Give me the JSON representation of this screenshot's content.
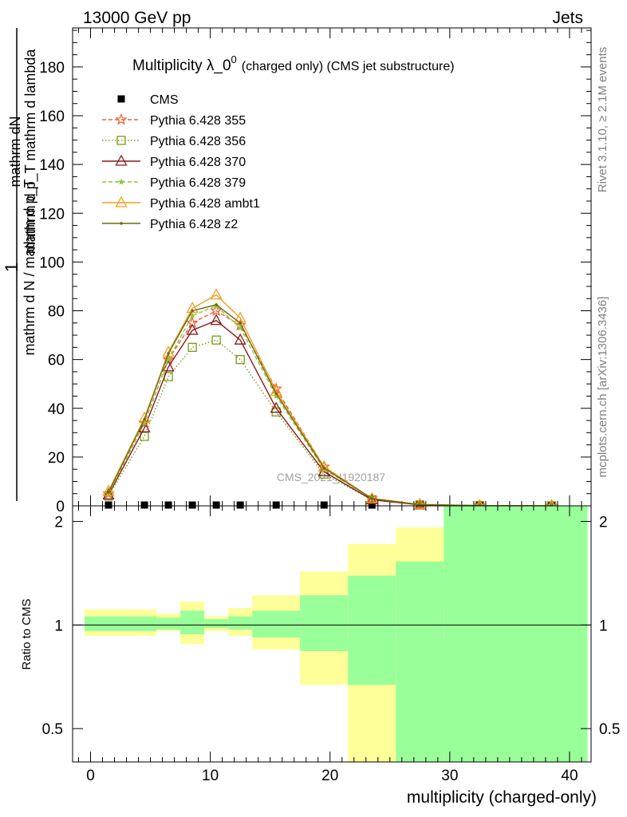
{
  "header": {
    "energy_label": "13000 GeV pp",
    "category_label": "Jets"
  },
  "side_labels": {
    "rivet": "Rivet 3.1.10, ≥ 2.1M events",
    "mcplots": "mcplots.cern.ch [arXiv:1306.3436]"
  },
  "watermark": "CMS_2021_I1920187",
  "chart_data": [
    {
      "type": "line",
      "title": "Multiplicity λ_0^0 (charged only) (CMS jet substructure)",
      "title_main": "Multiplicity λ_0",
      "title_sup": "0",
      "title_sub": "(charged only) (CMS jet substructure)",
      "ylabel_numerator": "mathrm dN",
      "ylabel_denominator": "mathrm d p_T mathrm d lambda",
      "ylabel_prefix_numerator": "1",
      "ylabel_prefix_denominator": "mathrm d N / mathrm d p_T",
      "xlim": [
        -1.5,
        41.8
      ],
      "ylim": [
        0,
        196
      ],
      "yticks": [
        0,
        20,
        40,
        60,
        80,
        100,
        120,
        140,
        160,
        180
      ],
      "yticklabels": [
        "0",
        "20",
        "40",
        "60",
        "80",
        "100",
        "120",
        "140",
        "160",
        "180"
      ],
      "legend_position": "top-left",
      "series": [
        {
          "name": "CMS",
          "color": "#000000",
          "style": "markers",
          "marker": "square",
          "x": [
            1.5,
            4.5,
            6.5,
            8.5,
            10.5,
            12.5,
            15.5,
            19.5,
            23.5,
            27.5,
            32.5,
            38.5
          ],
          "y": [
            0.3,
            0.3,
            0.3,
            0.3,
            0.3,
            0.3,
            0.3,
            0.3,
            0.3,
            0.3,
            0.3,
            0.3
          ]
        },
        {
          "name": "Pythia 6.428 355",
          "color": "#f06030",
          "style": "dashed",
          "marker": "star",
          "x": [
            1.5,
            4.5,
            6.5,
            8.5,
            10.5,
            12.5,
            15.5,
            19.5,
            23.5,
            27.5,
            32.5,
            38.5
          ],
          "y": [
            5,
            34,
            60,
            75,
            80,
            74,
            48,
            16,
            3,
            0.5,
            0.1,
            0.0
          ]
        },
        {
          "name": "Pythia 6.428 356",
          "color": "#7a9a1a",
          "style": "dotted",
          "marker": "square-open",
          "x": [
            1.5,
            4.5,
            6.5,
            8.5,
            10.5,
            12.5,
            15.5,
            19.5,
            23.5,
            27.5,
            32.5,
            38.5
          ],
          "y": [
            4,
            28.5,
            53,
            65,
            68,
            60,
            38.5,
            13,
            2.5,
            0.4,
            0.1,
            0.0
          ]
        },
        {
          "name": "Pythia 6.428 370",
          "color": "#8b1a1a",
          "style": "solid",
          "marker": "triangle-open",
          "x": [
            1.5,
            4.5,
            6.5,
            8.5,
            10.5,
            12.5,
            15.5,
            19.5,
            23.5,
            27.5,
            32.5,
            38.5
          ],
          "y": [
            4.5,
            32,
            57,
            72,
            76,
            68,
            40,
            14,
            2.5,
            0.4,
            0.1,
            0.0
          ]
        },
        {
          "name": "Pythia 6.428 379",
          "color": "#8cc63f",
          "style": "dashed",
          "marker": "star-small",
          "x": [
            1.5,
            4.5,
            6.5,
            8.5,
            10.5,
            12.5,
            15.5,
            19.5,
            23.5,
            27.5,
            32.5,
            38.5
          ],
          "y": [
            5,
            34,
            60,
            78,
            82,
            73,
            45,
            15,
            3,
            0.5,
            0.1,
            0.0
          ]
        },
        {
          "name": "Pythia 6.428 ambt1",
          "color": "#f0a020",
          "style": "solid",
          "marker": "triangle-open",
          "x": [
            1.5,
            4.5,
            6.5,
            8.5,
            10.5,
            12.5,
            15.5,
            19.5,
            23.5,
            27.5,
            32.5,
            38.5
          ],
          "y": [
            6,
            36,
            63,
            81,
            86.5,
            77,
            47,
            16,
            3,
            0.6,
            0.1,
            0.0
          ]
        },
        {
          "name": "Pythia 6.428 z2",
          "color": "#6b6b10",
          "style": "solid",
          "marker": "dot",
          "x": [
            1.5,
            4.5,
            6.5,
            8.5,
            10.5,
            12.5,
            15.5,
            19.5,
            23.5,
            27.5,
            32.5,
            38.5
          ],
          "y": [
            5.5,
            35.5,
            62.5,
            80,
            82.5,
            75,
            46,
            15.5,
            3,
            0.5,
            0.1,
            0.0
          ]
        }
      ]
    },
    {
      "type": "area",
      "ylabel": "Ratio to CMS",
      "xlabel": "multiplicity (charged-only)",
      "xlim": [
        -1.5,
        41.8
      ],
      "ylim": [
        0.4,
        2.22
      ],
      "log_y": true,
      "xticks": [
        0,
        10,
        20,
        30,
        40
      ],
      "xticklabels": [
        "0",
        "10",
        "20",
        "30",
        "40"
      ],
      "yticks": [
        0.5,
        1,
        2
      ],
      "yticklabels": [
        "0.5",
        "1",
        "2"
      ],
      "reference_line": 1,
      "bins": [
        {
          "lo": -0.5,
          "hi": 3.5,
          "yellow": [
            0.93,
            1.11
          ],
          "green": [
            0.96,
            1.06
          ]
        },
        {
          "lo": 3.5,
          "hi": 5.5,
          "yellow": [
            0.93,
            1.11
          ],
          "green": [
            0.96,
            1.06
          ]
        },
        {
          "lo": 5.5,
          "hi": 7.5,
          "yellow": [
            0.96,
            1.08
          ],
          "green": [
            0.97,
            1.05
          ]
        },
        {
          "lo": 7.5,
          "hi": 9.5,
          "yellow": [
            0.88,
            1.17
          ],
          "green": [
            0.94,
            1.1
          ]
        },
        {
          "lo": 9.5,
          "hi": 11.5,
          "yellow": [
            0.96,
            1.06
          ],
          "green": [
            0.98,
            1.04
          ]
        },
        {
          "lo": 11.5,
          "hi": 13.5,
          "yellow": [
            0.93,
            1.12
          ],
          "green": [
            0.97,
            1.06
          ]
        },
        {
          "lo": 13.5,
          "hi": 17.5,
          "yellow": [
            0.85,
            1.22
          ],
          "green": [
            0.92,
            1.1
          ]
        },
        {
          "lo": 17.5,
          "hi": 21.5,
          "yellow": [
            0.67,
            1.43
          ],
          "green": [
            0.84,
            1.22
          ]
        },
        {
          "lo": 21.5,
          "hi": 25.5,
          "yellow": [
            0.35,
            1.72
          ],
          "green": [
            0.67,
            1.39
          ]
        },
        {
          "lo": 25.5,
          "hi": 29.5,
          "yellow": [
            0.56,
            1.92
          ],
          "green": [
            0.35,
            1.53
          ]
        },
        {
          "lo": 29.5,
          "hi": 41.5,
          "yellow": [
            0.35,
            2.22
          ],
          "green": [
            0.35,
            2.22
          ]
        }
      ]
    }
  ]
}
